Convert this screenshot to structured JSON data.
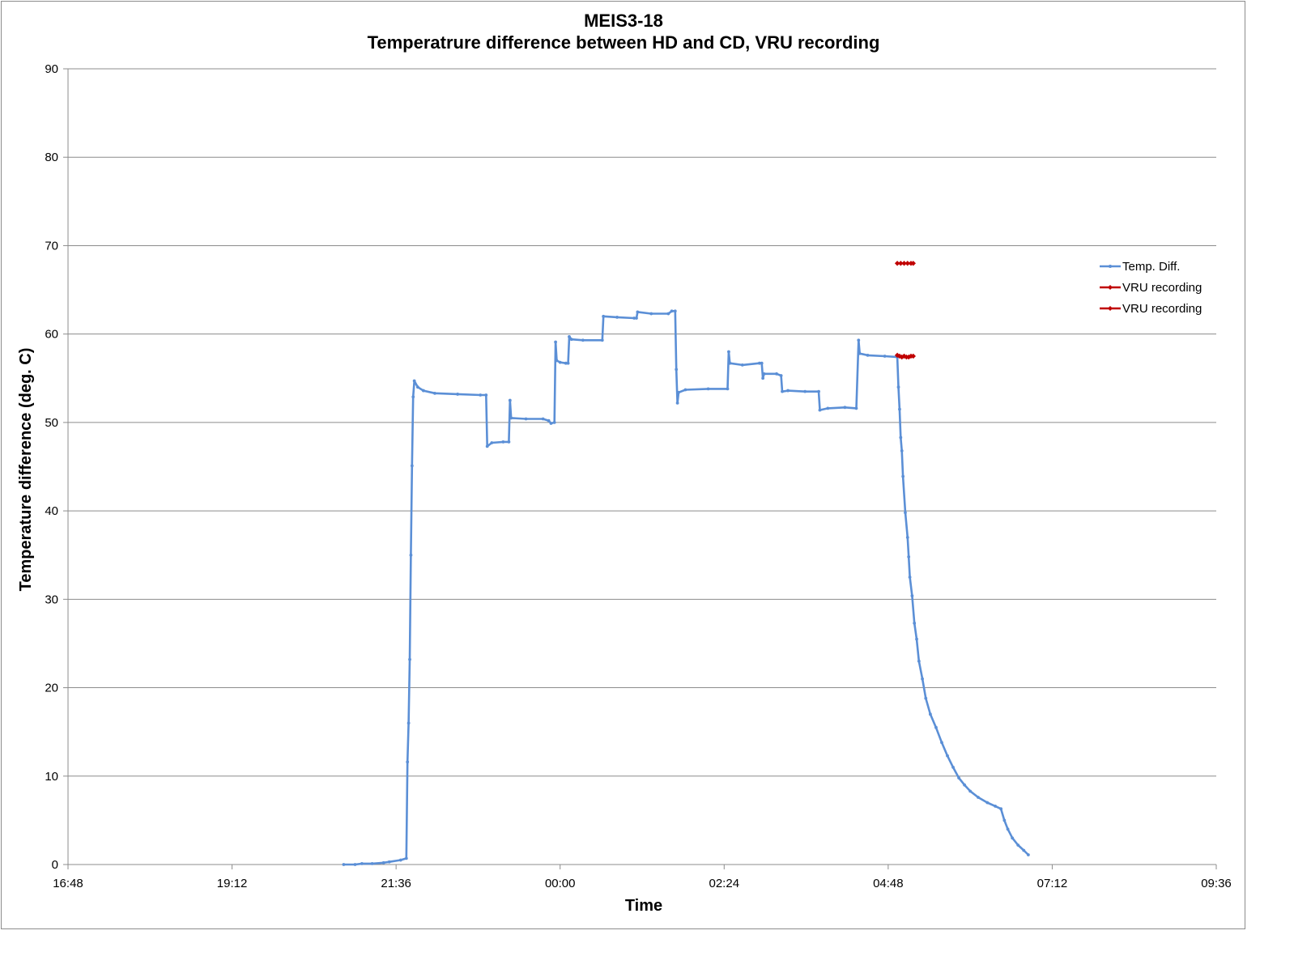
{
  "chart_data": {
    "type": "line",
    "title": "MEIS3-18",
    "subtitle": "Temperatrure difference between HD and CD, VRU recording",
    "xlabel": "Time",
    "ylabel": "Temperature difference (deg. C)",
    "xlim": [
      "16:48",
      "09:36"
    ],
    "ylim": [
      0,
      90
    ],
    "x_ticks": [
      "16:48",
      "19:12",
      "21:36",
      "00:00",
      "02:24",
      "04:48",
      "07:12",
      "09:36"
    ],
    "y_ticks": [
      "0",
      "10",
      "20",
      "30",
      "40",
      "50",
      "60",
      "70",
      "80",
      "90"
    ],
    "grid": true,
    "legend_position": "right",
    "series": [
      {
        "name": "Temp. Diff.",
        "color": "#5b8fd6",
        "marker": "dot",
        "points": [
          [
            "20:50",
            0.0
          ],
          [
            "21:00",
            0.0
          ],
          [
            "21:06",
            0.1
          ],
          [
            "21:15",
            0.1
          ],
          [
            "21:25",
            0.2
          ],
          [
            "21:30",
            0.3
          ],
          [
            "21:40",
            0.5
          ],
          [
            "21:45",
            0.7
          ],
          [
            "21:46",
            11.6
          ],
          [
            "21:47",
            16.0
          ],
          [
            "21:48",
            23.2
          ],
          [
            "21:49",
            35.0
          ],
          [
            "21:50",
            45.1
          ],
          [
            "21:51",
            52.9
          ],
          [
            "21:52",
            54.7
          ],
          [
            "21:55",
            54.0
          ],
          [
            "22:00",
            53.6
          ],
          [
            "22:10",
            53.3
          ],
          [
            "22:30",
            53.2
          ],
          [
            "22:50",
            53.1
          ],
          [
            "22:55",
            53.1
          ],
          [
            "22:56",
            47.3
          ],
          [
            "23:00",
            47.7
          ],
          [
            "23:10",
            47.8
          ],
          [
            "23:15",
            47.8
          ],
          [
            "23:16",
            52.5
          ],
          [
            "23:17",
            50.5
          ],
          [
            "23:30",
            50.4
          ],
          [
            "23:45",
            50.4
          ],
          [
            "23:50",
            50.2
          ],
          [
            "23:52",
            49.9
          ],
          [
            "23:55",
            50.0
          ],
          [
            "23:56",
            59.1
          ],
          [
            "23:57",
            57.0
          ],
          [
            "24:00",
            56.8
          ],
          [
            "24:05",
            56.7
          ],
          [
            "24:07",
            56.7
          ],
          [
            "24:08",
            59.7
          ],
          [
            "24:10",
            59.4
          ],
          [
            "24:20",
            59.3
          ],
          [
            "24:37",
            59.3
          ],
          [
            "24:38",
            62.0
          ],
          [
            "24:50",
            61.9
          ],
          [
            "25:05",
            61.8
          ],
          [
            "25:07",
            61.8
          ],
          [
            "25:08",
            62.5
          ],
          [
            "25:20",
            62.3
          ],
          [
            "25:35",
            62.3
          ],
          [
            "25:38",
            62.6
          ],
          [
            "25:41",
            62.6
          ],
          [
            "25:42",
            56.0
          ],
          [
            "25:43",
            52.2
          ],
          [
            "25:44",
            53.4
          ],
          [
            "25:50",
            53.7
          ],
          [
            "26:10",
            53.8
          ],
          [
            "26:27",
            53.8
          ],
          [
            "26:28",
            58.0
          ],
          [
            "26:29",
            56.7
          ],
          [
            "26:40",
            56.5
          ],
          [
            "26:55",
            56.7
          ],
          [
            "26:57",
            56.7
          ],
          [
            "26:58",
            55.0
          ],
          [
            "26:59",
            55.5
          ],
          [
            "27:10",
            55.5
          ],
          [
            "27:14",
            55.3
          ],
          [
            "27:15",
            53.5
          ],
          [
            "27:20",
            53.6
          ],
          [
            "27:35",
            53.5
          ],
          [
            "27:47",
            53.5
          ],
          [
            "27:48",
            51.4
          ],
          [
            "27:55",
            51.6
          ],
          [
            "28:10",
            51.7
          ],
          [
            "28:20",
            51.6
          ],
          [
            "28:22",
            59.3
          ],
          [
            "28:23",
            57.8
          ],
          [
            "28:30",
            57.6
          ],
          [
            "28:45",
            57.5
          ],
          [
            "28:56",
            57.4
          ],
          [
            "28:57",
            54.0
          ],
          [
            "28:58",
            51.5
          ],
          [
            "28:59",
            48.3
          ],
          [
            "29:00",
            46.8
          ],
          [
            "29:01",
            43.9
          ],
          [
            "29:03",
            39.8
          ],
          [
            "29:05",
            37.0
          ],
          [
            "29:06",
            34.8
          ],
          [
            "29:07",
            32.5
          ],
          [
            "29:09",
            30.4
          ],
          [
            "29:11",
            27.3
          ],
          [
            "29:13",
            25.5
          ],
          [
            "29:15",
            23.0
          ],
          [
            "29:18",
            21.0
          ],
          [
            "29:21",
            18.8
          ],
          [
            "29:25",
            17.0
          ],
          [
            "29:30",
            15.5
          ],
          [
            "29:35",
            13.8
          ],
          [
            "29:40",
            12.3
          ],
          [
            "29:45",
            11.0
          ],
          [
            "29:50",
            9.8
          ],
          [
            "29:55",
            9.0
          ],
          [
            "30:00",
            8.3
          ],
          [
            "30:07",
            7.6
          ],
          [
            "30:15",
            7.0
          ],
          [
            "30:22",
            6.6
          ],
          [
            "30:27",
            6.3
          ],
          [
            "30:30",
            5.0
          ],
          [
            "30:33",
            4.0
          ],
          [
            "30:37",
            3.0
          ],
          [
            "30:42",
            2.2
          ],
          [
            "30:47",
            1.6
          ],
          [
            "30:51",
            1.1
          ]
        ]
      },
      {
        "name": "VRU recording",
        "color": "#c00000",
        "marker": "diamond",
        "points": [
          [
            "28:56",
            57.6
          ],
          [
            "28:58",
            57.5
          ],
          [
            "29:00",
            57.4
          ],
          [
            "29:02",
            57.5
          ],
          [
            "29:04",
            57.4
          ],
          [
            "29:06",
            57.4
          ],
          [
            "29:08",
            57.5
          ],
          [
            "29:10",
            57.5
          ]
        ]
      },
      {
        "name": "VRU recording",
        "color": "#c00000",
        "marker": "diamond",
        "points": [
          [
            "28:56",
            68.0
          ],
          [
            "28:59",
            68.0
          ],
          [
            "29:02",
            68.0
          ],
          [
            "29:05",
            68.0
          ],
          [
            "29:08",
            68.0
          ],
          [
            "29:10",
            68.0
          ]
        ]
      }
    ]
  }
}
